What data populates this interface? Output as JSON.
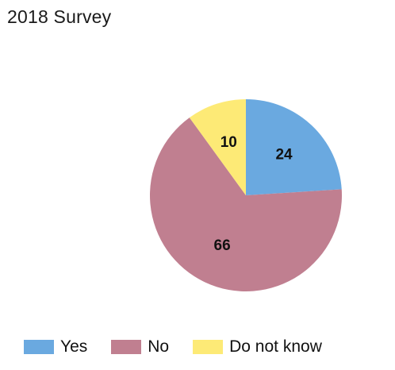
{
  "chart_data": {
    "type": "pie",
    "title": "2018 Survey",
    "categories": [
      "Yes",
      "No",
      "Do not know"
    ],
    "values": [
      24,
      66,
      10
    ],
    "colors": [
      "#6aa9e0",
      "#c07f90",
      "#fdea76"
    ],
    "start_angle": "12 o'clock",
    "direction": "clockwise",
    "legend_position": "bottom"
  }
}
